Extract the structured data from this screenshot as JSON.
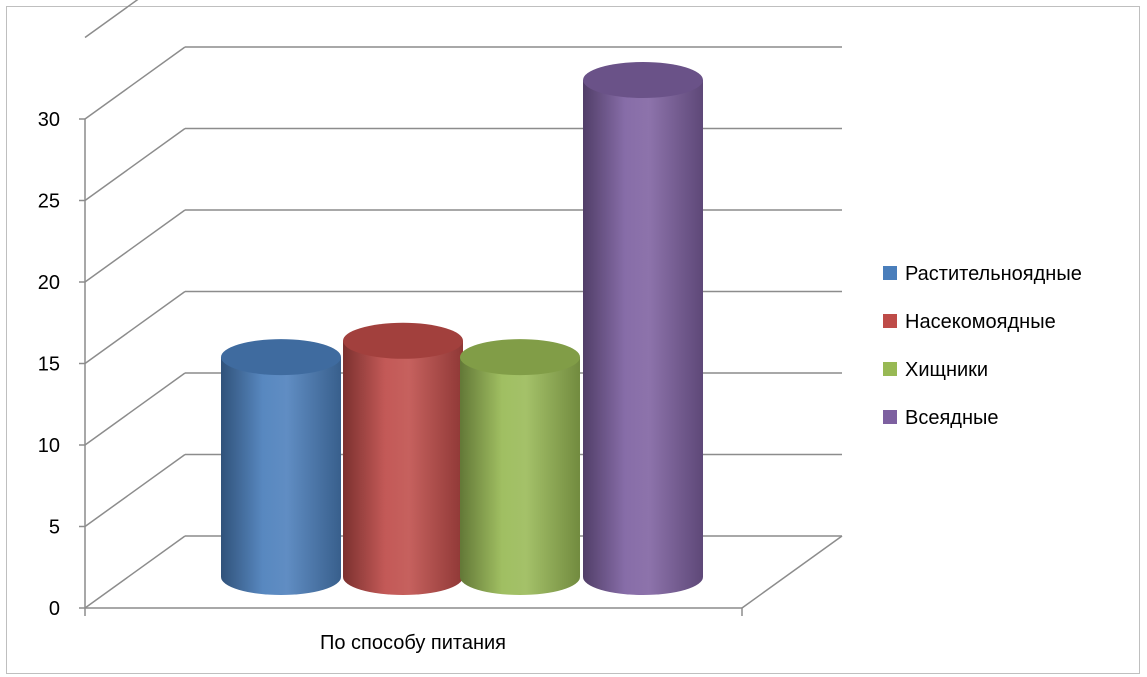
{
  "chart_data": {
    "type": "bar",
    "categories": [
      "По способу питания"
    ],
    "series": [
      {
        "name": "Растительноядные",
        "values": [
          13
        ],
        "color": "#4a7ebb"
      },
      {
        "name": "Насекомоядные",
        "values": [
          14
        ],
        "color": "#be4b48"
      },
      {
        "name": "Хищники",
        "values": [
          13
        ],
        "color": "#98b954"
      },
      {
        "name": "Всеядные",
        "values": [
          30
        ],
        "color": "#7d60a0"
      }
    ],
    "yticks": [
      "0",
      "5",
      "10",
      "15",
      "20",
      "25",
      "30"
    ],
    "ylim": [
      0,
      35
    ],
    "grid": true,
    "legend_position": "right",
    "style": "3d-cylinder"
  }
}
